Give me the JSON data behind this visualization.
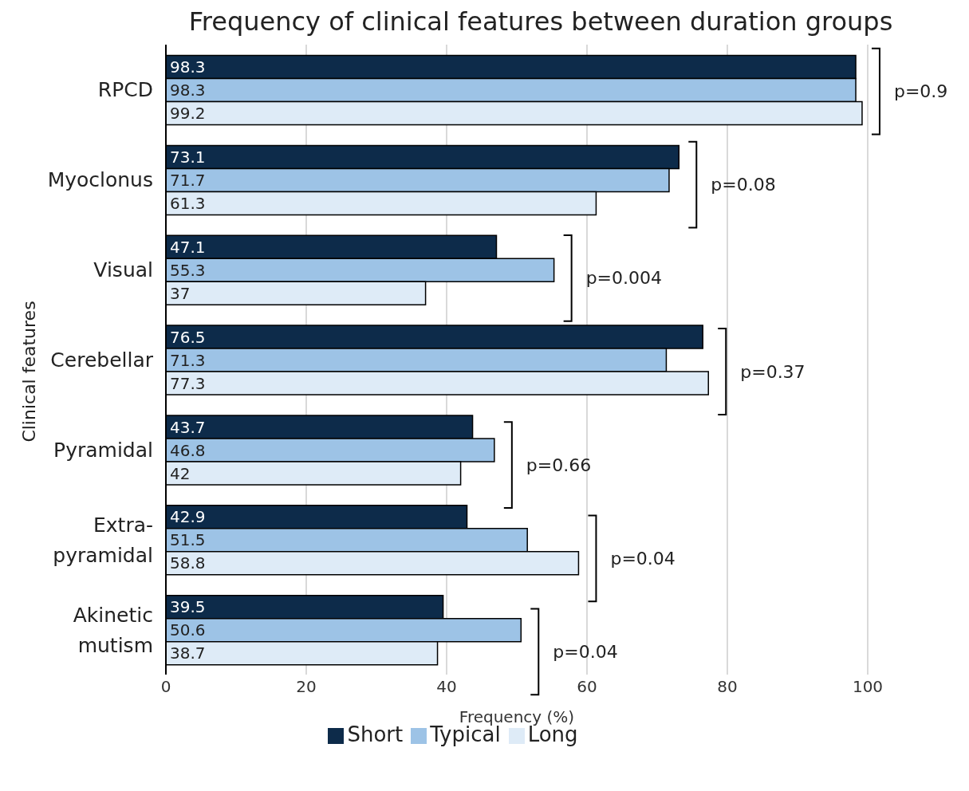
{
  "chart_data": {
    "type": "bar",
    "orientation": "horizontal",
    "title": "Frequency of clinical features between duration groups",
    "xlabel": "Frequency (%)",
    "ylabel": "Clinical features",
    "categories": [
      "RPCD",
      "Myoclonus",
      "Visual",
      "Cerebellar",
      "Pyramidal",
      "Extra-\npyramidal",
      "Akinetic\nmutism"
    ],
    "series": [
      {
        "name": "Short",
        "color": "#0d2b4a",
        "values": [
          98.3,
          73.1,
          47.1,
          76.5,
          43.7,
          42.9,
          39.5
        ]
      },
      {
        "name": "Typical",
        "color": "#9dc3e6",
        "values": [
          98.3,
          71.7,
          55.3,
          71.3,
          46.8,
          51.5,
          50.6
        ]
      },
      {
        "name": "Long",
        "color": "#deebf7",
        "values": [
          99.2,
          61.3,
          37,
          77.3,
          42,
          58.8,
          38.7
        ]
      }
    ],
    "xlim": [
      0,
      100
    ],
    "xticks": [
      0,
      20,
      40,
      60,
      80,
      100
    ],
    "grid": "x",
    "legend": "bottom",
    "data_labels": true,
    "annotations": [
      "p=0.9",
      "p=0.08",
      "p=0.004",
      "p=0.37",
      "p=0.66",
      "p=0.04",
      "p=0.04"
    ]
  }
}
